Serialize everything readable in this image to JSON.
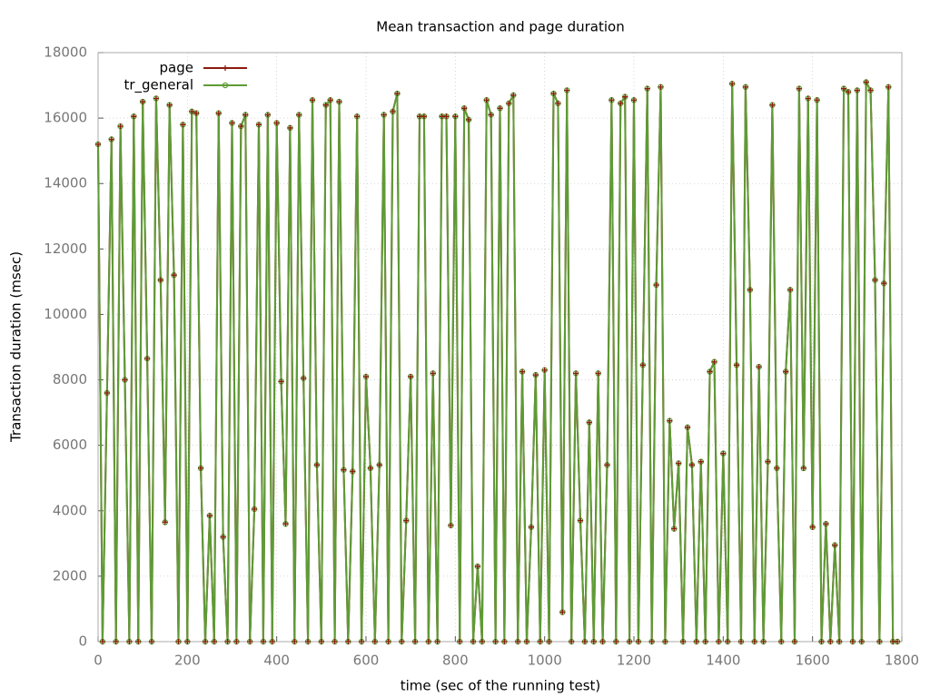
{
  "chart_data": {
    "type": "line",
    "title": "Mean transaction and page duration",
    "x_label": "time (sec of the running test)",
    "y_label": "Transaction duration (msec)",
    "xlim": [
      0,
      1800
    ],
    "xticks": [
      0,
      200,
      400,
      600,
      800,
      1000,
      1200,
      1400,
      1600,
      1800
    ],
    "ylim": [
      0,
      18000
    ],
    "yticks": [
      0,
      2000,
      4000,
      6000,
      8000,
      10000,
      12000,
      14000,
      16000,
      18000
    ],
    "grid": true,
    "legend": "upper-left",
    "x": [
      0,
      10,
      20,
      30,
      40,
      50,
      60,
      70,
      80,
      90,
      100,
      110,
      120,
      130,
      140,
      150,
      160,
      170,
      180,
      190,
      200,
      210,
      220,
      230,
      240,
      250,
      260,
      270,
      280,
      290,
      300,
      310,
      320,
      330,
      340,
      350,
      360,
      370,
      380,
      390,
      400,
      410,
      420,
      430,
      440,
      450,
      460,
      470,
      480,
      490,
      500,
      510,
      520,
      530,
      540,
      550,
      560,
      570,
      580,
      590,
      600,
      610,
      620,
      630,
      640,
      650,
      660,
      670,
      680,
      690,
      700,
      710,
      720,
      730,
      740,
      750,
      760,
      770,
      780,
      790,
      800,
      810,
      820,
      830,
      840,
      850,
      860,
      870,
      880,
      890,
      900,
      910,
      920,
      930,
      940,
      950,
      960,
      970,
      980,
      990,
      1000,
      1010,
      1020,
      1030,
      1040,
      1050,
      1060,
      1070,
      1080,
      1090,
      1100,
      1110,
      1120,
      1130,
      1140,
      1150,
      1160,
      1170,
      1180,
      1190,
      1200,
      1210,
      1220,
      1230,
      1240,
      1250,
      1260,
      1270,
      1280,
      1290,
      1300,
      1310,
      1320,
      1330,
      1340,
      1350,
      1360,
      1370,
      1380,
      1390,
      1400,
      1410,
      1420,
      1430,
      1440,
      1450,
      1460,
      1470,
      1480,
      1490,
      1500,
      1510,
      1520,
      1530,
      1540,
      1550,
      1560,
      1570,
      1580,
      1590,
      1600,
      1610,
      1620,
      1630,
      1640,
      1650,
      1660,
      1670,
      1680,
      1690,
      1700,
      1710,
      1720,
      1730,
      1740,
      1750,
      1760,
      1770,
      1780,
      1790
    ],
    "series": [
      {
        "name": "page",
        "color": "#8b1a0e",
        "marker": "plus",
        "values": [
          15200,
          0,
          7600,
          15350,
          0,
          15750,
          8000,
          0,
          16050,
          0,
          16500,
          8650,
          0,
          16600,
          11050,
          3650,
          16400,
          11200,
          0,
          15800,
          0,
          16200,
          16150,
          5300,
          0,
          3850,
          0,
          16150,
          3200,
          0,
          15850,
          0,
          15750,
          16100,
          0,
          4050,
          15800,
          0,
          16100,
          0,
          15850,
          7950,
          3600,
          15700,
          0,
          16100,
          8050,
          0,
          16550,
          5400,
          0,
          16400,
          16550,
          0,
          16500,
          5250,
          0,
          5200,
          16050,
          0,
          8100,
          5300,
          0,
          5400,
          16100,
          0,
          16200,
          16750,
          0,
          3700,
          8100,
          0,
          16050,
          16050,
          0,
          8200,
          0,
          16050,
          16050,
          3550,
          16050,
          0,
          16300,
          15950,
          0,
          2300,
          0,
          16550,
          16100,
          0,
          16300,
          0,
          16450,
          16700,
          0,
          8250,
          0,
          3500,
          8150,
          0,
          8300,
          0,
          16750,
          16450,
          900,
          16850,
          0,
          8200,
          3700,
          0,
          6700,
          0,
          8200,
          0,
          5400,
          16550,
          0,
          16450,
          16650,
          0,
          16550,
          0,
          8450,
          16900,
          0,
          10900,
          16950,
          0,
          6750,
          3450,
          5450,
          0,
          6550,
          5400,
          0,
          5500,
          0,
          8250,
          8550,
          0,
          5750,
          0,
          17050,
          8450,
          0,
          16950,
          10750,
          0,
          8400,
          0,
          5500,
          16400,
          5300,
          0,
          8250,
          10750,
          0,
          16900,
          5300,
          16600,
          3500,
          16550,
          0,
          3600,
          0,
          2950,
          0,
          16900,
          16800,
          0,
          16850,
          0,
          17100,
          16850,
          11050,
          0,
          10950,
          16950,
          0,
          0
        ]
      },
      {
        "name": "tr_general",
        "color": "#5e9c36",
        "marker": "circle",
        "values": [
          15200,
          0,
          7600,
          15350,
          0,
          15750,
          8000,
          0,
          16050,
          0,
          16500,
          8650,
          0,
          16600,
          11050,
          3650,
          16400,
          11200,
          0,
          15800,
          0,
          16200,
          16150,
          5300,
          0,
          3850,
          0,
          16150,
          3200,
          0,
          15850,
          0,
          15750,
          16100,
          0,
          4050,
          15800,
          0,
          16100,
          0,
          15850,
          7950,
          3600,
          15700,
          0,
          16100,
          8050,
          0,
          16550,
          5400,
          0,
          16400,
          16550,
          0,
          16500,
          5250,
          0,
          5200,
          16050,
          0,
          8100,
          5300,
          0,
          5400,
          16100,
          0,
          16200,
          16750,
          0,
          3700,
          8100,
          0,
          16050,
          16050,
          0,
          8200,
          0,
          16050,
          16050,
          3550,
          16050,
          0,
          16300,
          15950,
          0,
          2300,
          0,
          16550,
          16100,
          0,
          16300,
          0,
          16450,
          16700,
          0,
          8250,
          0,
          3500,
          8150,
          0,
          8300,
          0,
          16750,
          16450,
          900,
          16850,
          0,
          8200,
          3700,
          0,
          6700,
          0,
          8200,
          0,
          5400,
          16550,
          0,
          16450,
          16650,
          0,
          16550,
          0,
          8450,
          16900,
          0,
          10900,
          16950,
          0,
          6750,
          3450,
          5450,
          0,
          6550,
          5400,
          0,
          5500,
          0,
          8250,
          8550,
          0,
          5750,
          0,
          17050,
          8450,
          0,
          16950,
          10750,
          0,
          8400,
          0,
          5500,
          16400,
          5300,
          0,
          8250,
          10750,
          0,
          16900,
          5300,
          16600,
          3500,
          16550,
          0,
          3600,
          0,
          2950,
          0,
          16900,
          16800,
          0,
          16850,
          0,
          17100,
          16850,
          11050,
          0,
          10950,
          16950,
          0,
          0
        ]
      }
    ]
  }
}
